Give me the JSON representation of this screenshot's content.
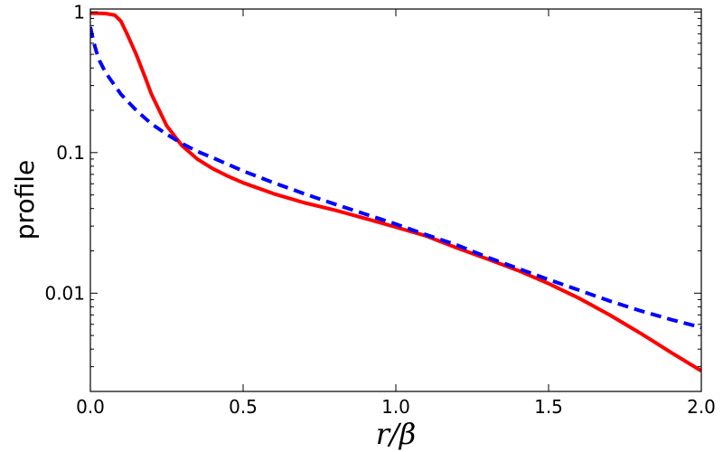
{
  "chart_data": {
    "type": "line",
    "title": "",
    "xlabel": "r/β",
    "ylabel": "profile",
    "xlim": [
      0.0,
      2.0
    ],
    "ylim": [
      0.002,
      1.05
    ],
    "yscale": "log",
    "grid": false,
    "x_ticks": [
      0.0,
      0.5,
      1.0,
      1.5,
      2.0
    ],
    "x_tick_labels": [
      "0.0",
      "0.5",
      "1.0",
      "1.5",
      "2.0"
    ],
    "y_ticks": [
      1,
      0.1,
      0.01
    ],
    "y_tick_labels": [
      "1",
      "0.1",
      "0.01"
    ],
    "series": [
      {
        "color": "#ff0000",
        "style": "solid",
        "x": [
          0.0,
          0.02,
          0.05,
          0.08,
          0.1,
          0.12,
          0.15,
          0.18,
          0.2,
          0.25,
          0.3,
          0.35,
          0.4,
          0.45,
          0.5,
          0.6,
          0.7,
          0.8,
          0.9,
          1.0,
          1.1,
          1.2,
          1.3,
          1.4,
          1.5,
          1.6,
          1.7,
          1.8,
          1.9,
          2.0
        ],
        "y": [
          0.98,
          0.98,
          0.975,
          0.95,
          0.86,
          0.7,
          0.5,
          0.34,
          0.26,
          0.155,
          0.112,
          0.09,
          0.077,
          0.068,
          0.061,
          0.051,
          0.044,
          0.039,
          0.034,
          0.0295,
          0.0255,
          0.021,
          0.0175,
          0.0145,
          0.0117,
          0.0092,
          0.007,
          0.0052,
          0.0038,
          0.0028
        ]
      },
      {
        "color": "#0000ff",
        "style": "dashed",
        "x": [
          0.0,
          0.01,
          0.02,
          0.03,
          0.05,
          0.08,
          0.1,
          0.15,
          0.2,
          0.25,
          0.3,
          0.35,
          0.4,
          0.5,
          0.6,
          0.7,
          0.8,
          0.9,
          1.0,
          1.1,
          1.2,
          1.3,
          1.4,
          1.5,
          1.6,
          1.7,
          1.8,
          1.9,
          2.0
        ],
        "y": [
          0.78,
          0.62,
          0.52,
          0.45,
          0.37,
          0.3,
          0.26,
          0.2,
          0.16,
          0.135,
          0.116,
          0.102,
          0.092,
          0.074,
          0.061,
          0.051,
          0.043,
          0.0365,
          0.031,
          0.026,
          0.022,
          0.018,
          0.015,
          0.0125,
          0.0105,
          0.0088,
          0.0075,
          0.0065,
          0.0057
        ]
      }
    ]
  }
}
